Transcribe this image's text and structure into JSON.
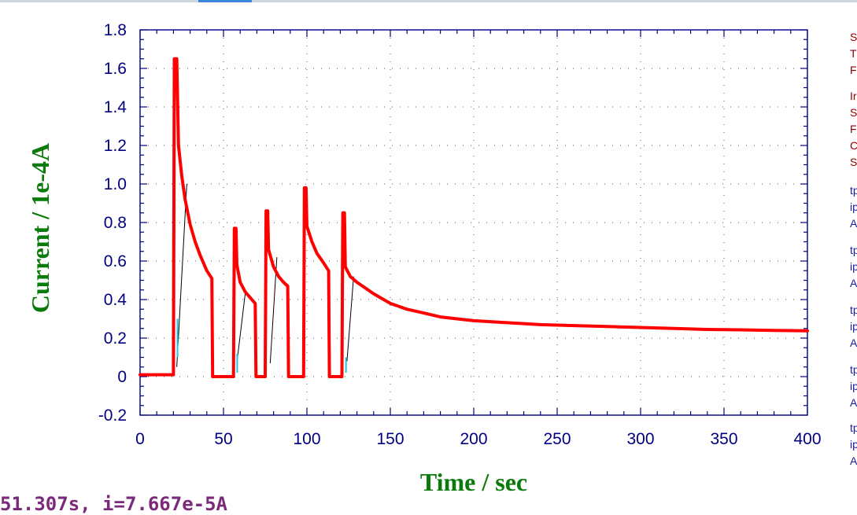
{
  "colors": {
    "axis": "#000080",
    "label": "#0a7a0a",
    "trace": "#ff0000",
    "trace_secondary": "#22c8d8",
    "connector": "#000000",
    "side_red": "#8b0000",
    "side_blue": "#1a1aa0",
    "readout": "#7b2a7b"
  },
  "chart_data": {
    "type": "line",
    "title": "",
    "xlabel": "Time / sec",
    "ylabel": "Current / 1e-4A",
    "xlim": [
      0,
      400
    ],
    "ylim": [
      -0.2,
      1.8
    ],
    "xticks": [
      "0",
      "50",
      "100",
      "150",
      "200",
      "250",
      "300",
      "350",
      "400"
    ],
    "yticks": [
      "-0.2",
      "0",
      "0.2",
      "0.4",
      "0.6",
      "0.8",
      "1.0",
      "1.2",
      "1.4",
      "1.6",
      "1.8"
    ],
    "grid": true,
    "series": [
      {
        "color": "#ff0000",
        "x": [
          0,
          20,
          20.5,
          22,
          23,
          25,
          27,
          30,
          33,
          36,
          40,
          43,
          43.5,
          45,
          50,
          55,
          56,
          56.5,
          57.5,
          58,
          60,
          63,
          66,
          69,
          69.5,
          72,
          75,
          75.5,
          76.5,
          77,
          80,
          83,
          86,
          88.5,
          89,
          95,
          98,
          98.5,
          99.5,
          100,
          103,
          106,
          110,
          113,
          113.5,
          118,
          121,
          121.5,
          122.5,
          123,
          126,
          130,
          140,
          150,
          160,
          170,
          180,
          190,
          200,
          220,
          240,
          260,
          280,
          300,
          320,
          340,
          360,
          380,
          400
        ],
        "y": [
          0.01,
          0.01,
          1.65,
          1.65,
          1.2,
          1.04,
          0.92,
          0.79,
          0.7,
          0.63,
          0.55,
          0.51,
          0.0,
          0.0,
          0.0,
          0.0,
          0.0,
          0.77,
          0.77,
          0.58,
          0.49,
          0.44,
          0.41,
          0.38,
          0.0,
          0.0,
          0.0,
          0.86,
          0.86,
          0.66,
          0.57,
          0.52,
          0.49,
          0.47,
          0.0,
          0.0,
          0.0,
          0.98,
          0.98,
          0.78,
          0.7,
          0.64,
          0.59,
          0.55,
          0.0,
          0.0,
          0.0,
          0.85,
          0.85,
          0.57,
          0.52,
          0.49,
          0.43,
          0.38,
          0.35,
          0.33,
          0.31,
          0.3,
          0.29,
          0.28,
          0.27,
          0.265,
          0.26,
          0.255,
          0.25,
          0.245,
          0.243,
          0.24,
          0.238
        ]
      }
    ],
    "connector_lines": [
      {
        "x": [
          22,
          28
        ],
        "y": [
          0.05,
          1.0
        ]
      },
      {
        "x": [
          58,
          63
        ],
        "y": [
          0.07,
          0.43
        ]
      },
      {
        "x": [
          78,
          82
        ],
        "y": [
          0.07,
          0.62
        ]
      },
      {
        "x": [
          124,
          128
        ],
        "y": [
          0.08,
          0.52
        ]
      }
    ]
  },
  "readout": {
    "text": "51.307s, i=7.667e-5A"
  },
  "side_panel": {
    "block1": [
      "S",
      "T",
      "F"
    ],
    "block2": [
      "Ir",
      "S",
      "F",
      "C",
      "S"
    ],
    "groups": [
      [
        "tp",
        "ip",
        "A"
      ],
      [
        "tp",
        "ip",
        "A"
      ],
      [
        "tp",
        "ip",
        "A"
      ],
      [
        "tp",
        "ip",
        "A"
      ],
      [
        "tp",
        "ip",
        "A"
      ]
    ]
  }
}
